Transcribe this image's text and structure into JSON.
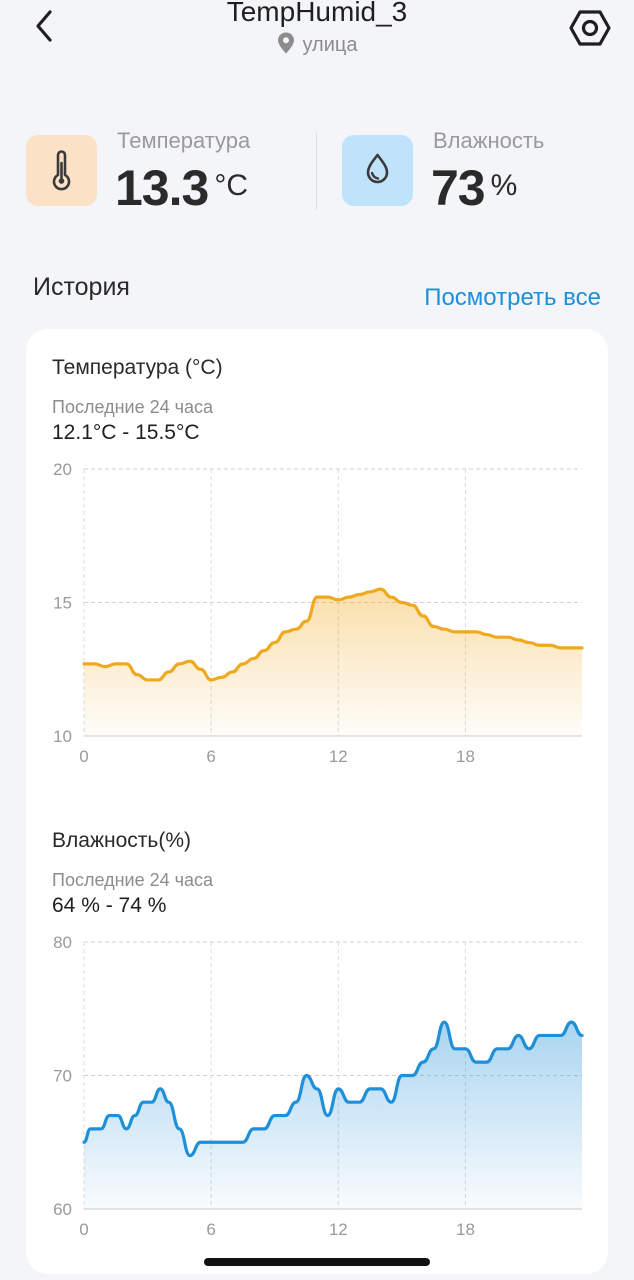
{
  "header": {
    "title": "TempHumid_3",
    "location": "улица",
    "icons": {
      "back": "chevron-left-icon",
      "location": "map-pin-icon",
      "settings": "hex-gear-icon"
    }
  },
  "stats": {
    "temperature": {
      "label": "Температура",
      "value": "13.3",
      "unit": "°C",
      "icon": "thermometer-icon",
      "bg": "#fbe2c6",
      "color": "#3a3a3a"
    },
    "humidity": {
      "label": "Влажность",
      "value": "73",
      "unit": "%",
      "icon": "water-drop-icon",
      "bg": "#bfe3fb",
      "color": "#3a3a3a"
    }
  },
  "history": {
    "title": "История",
    "view_all": "Посмотреть все"
  },
  "colors": {
    "temp_line": "#f0a91e",
    "humid_line": "#1f8fd8",
    "link": "#1f8fd8"
  },
  "chart_data": [
    {
      "type": "area",
      "title": "Температура (°C)",
      "subtitle": "Последние 24 часа",
      "range_text": "12.1°C - 15.5°C",
      "xlabel": "",
      "ylabel": "",
      "x_ticks": [
        "0",
        "6",
        "12",
        "18"
      ],
      "y_ticks": [
        "20",
        "15",
        "10"
      ],
      "xlim": [
        0,
        23.5
      ],
      "ylim": [
        10,
        20
      ],
      "grid": true,
      "series": [
        {
          "color": "#f0a91e",
          "x": [
            0,
            0.5,
            1,
            1.5,
            2,
            2.5,
            3,
            3.5,
            4,
            4.5,
            5,
            5.5,
            6,
            6.5,
            7,
            7.5,
            8,
            8.5,
            9,
            9.5,
            10,
            10.5,
            11,
            11.5,
            12,
            12.5,
            13,
            13.5,
            14,
            14.5,
            15,
            15.5,
            16,
            16.5,
            17,
            17.5,
            18,
            18.5,
            19,
            19.5,
            20,
            20.5,
            21,
            21.5,
            22,
            22.5,
            23,
            23.5
          ],
          "values": [
            12.7,
            12.7,
            12.6,
            12.7,
            12.7,
            12.3,
            12.1,
            12.1,
            12.4,
            12.7,
            12.8,
            12.5,
            12.1,
            12.2,
            12.4,
            12.7,
            12.9,
            13.2,
            13.5,
            13.9,
            14.0,
            14.3,
            15.2,
            15.2,
            15.1,
            15.2,
            15.3,
            15.4,
            15.5,
            15.2,
            15.0,
            14.9,
            14.5,
            14.1,
            14.0,
            13.9,
            13.9,
            13.9,
            13.8,
            13.7,
            13.7,
            13.6,
            13.5,
            13.4,
            13.4,
            13.3,
            13.3,
            13.3
          ]
        }
      ]
    },
    {
      "type": "area",
      "title": "Влажность(%)",
      "subtitle": "Последние 24 часа",
      "range_text": "64 % - 74 %",
      "xlabel": "",
      "ylabel": "",
      "x_ticks": [
        "0",
        "6",
        "12",
        "18"
      ],
      "y_ticks": [
        "80",
        "70",
        "60"
      ],
      "xlim": [
        0,
        23.5
      ],
      "ylim": [
        60,
        80
      ],
      "grid": true,
      "series": [
        {
          "color": "#1f8fd8",
          "x": [
            0,
            0.3,
            0.8,
            1.2,
            1.6,
            2,
            2.4,
            2.8,
            3.2,
            3.6,
            4,
            4.5,
            5,
            5.5,
            6,
            6.5,
            7,
            7.5,
            8,
            8.5,
            9,
            9.5,
            10,
            10.5,
            11,
            11.5,
            12,
            12.5,
            13,
            13.5,
            14,
            14.5,
            15,
            15.5,
            16,
            16.5,
            17,
            17.5,
            18,
            18.5,
            19,
            19.5,
            20,
            20.5,
            21,
            21.5,
            22,
            22.5,
            23,
            23.5
          ],
          "values": [
            65,
            66,
            66,
            67,
            67,
            66,
            67,
            68,
            68,
            69,
            68,
            66,
            64,
            65,
            65,
            65,
            65,
            65,
            66,
            66,
            67,
            67,
            68,
            70,
            69,
            67,
            69,
            68,
            68,
            69,
            69,
            68,
            70,
            70,
            71,
            72,
            74,
            72,
            72,
            71,
            71,
            72,
            72,
            73,
            72,
            73,
            73,
            73,
            74,
            73
          ]
        }
      ]
    }
  ]
}
